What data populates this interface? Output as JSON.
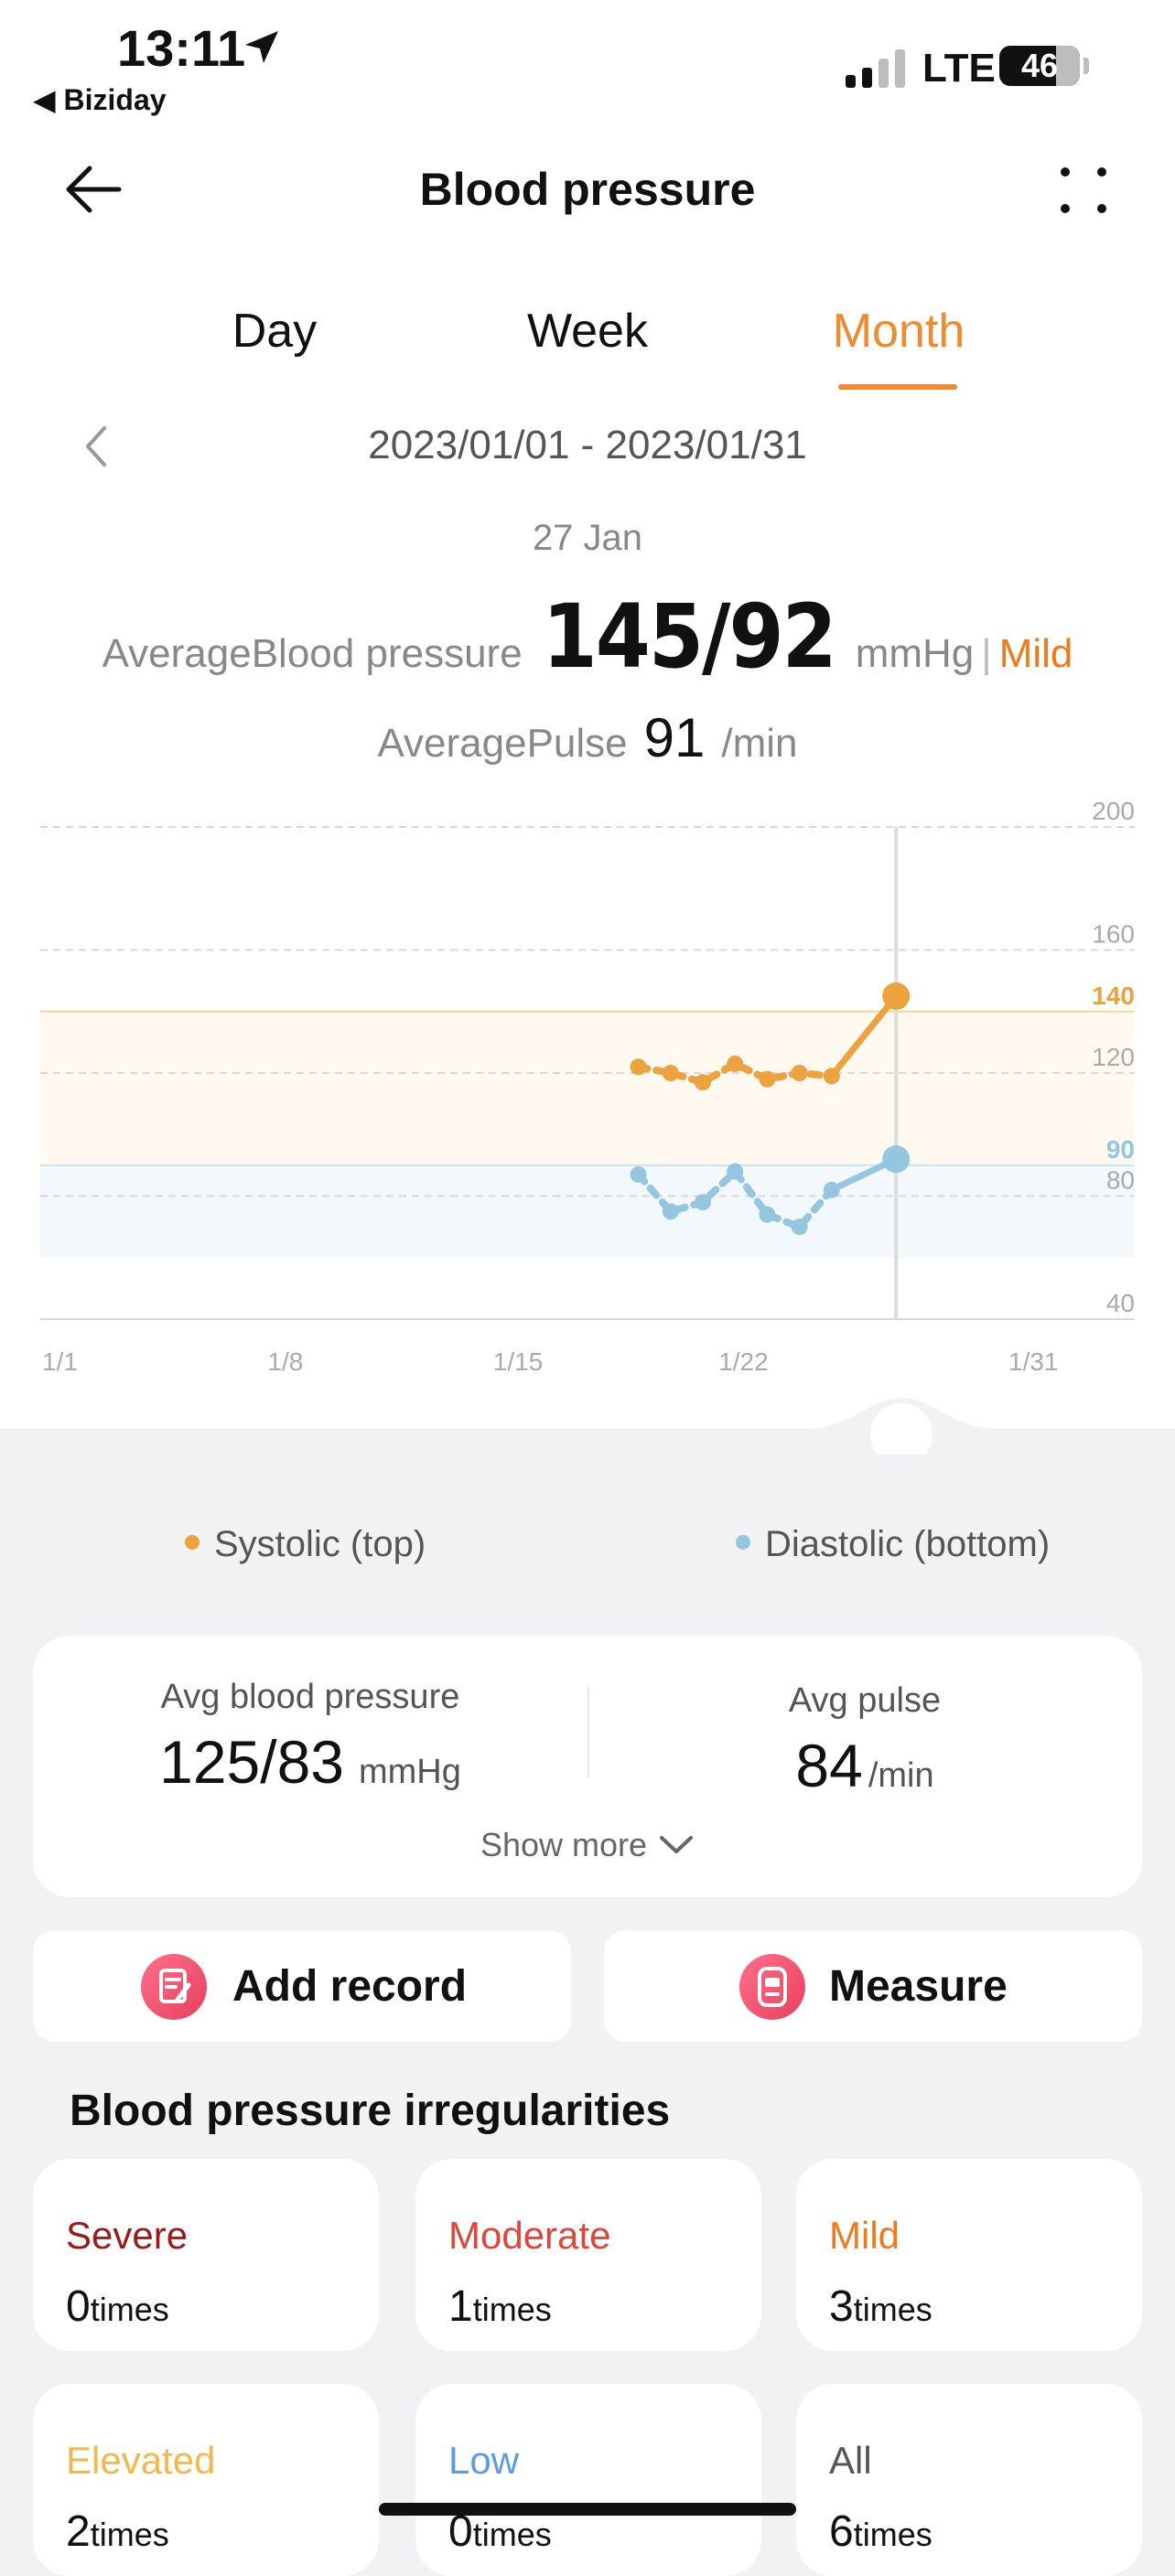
{
  "status_bar": {
    "time": "13:11",
    "back_app": "◀ Biziday",
    "network": "LTE",
    "battery": "46"
  },
  "nav": {
    "title": "Blood pressure"
  },
  "tabs": [
    {
      "label": "Day"
    },
    {
      "label": "Week"
    },
    {
      "label": "Month",
      "active": true
    }
  ],
  "date_range": "2023/01/01 - 2023/01/31",
  "selected": {
    "date": "27 Jan",
    "avg_bp_label": "AverageBlood pressure",
    "avg_bp_value": "145/92",
    "avg_bp_unit": "mmHg",
    "separator": "|",
    "category": "Mild",
    "avg_pulse_label": "AveragePulse",
    "avg_pulse_value": "91",
    "avg_pulse_unit": "/min"
  },
  "colors": {
    "accent": "#ef8a2f",
    "systolic": "#eba23f",
    "diastolic": "#94c6e0",
    "severe": "#9b1b1b",
    "moderate": "#e0453a",
    "mild": "#ee7a1e",
    "elevated": "#f2b94a",
    "low": "#5b9be8",
    "all": "#555555"
  },
  "chart_data": {
    "type": "line",
    "x_ticks": [
      "1/1",
      "1/8",
      "1/15",
      "1/22",
      "1/31"
    ],
    "x_tick_days": [
      1,
      8,
      15,
      22,
      31
    ],
    "y_ticks": [
      200,
      160,
      140,
      120,
      90,
      80,
      40
    ],
    "ylim": [
      40,
      200
    ],
    "xlim": [
      1,
      31
    ],
    "bands": [
      {
        "name": "systolic-normal",
        "from": 90,
        "to": 140
      },
      {
        "name": "diastolic-normal",
        "from": 60,
        "to": 90
      }
    ],
    "selected_day": 27,
    "series": [
      {
        "key": "systolic",
        "x": [
          19,
          20,
          21,
          22,
          23,
          24,
          25,
          27
        ],
        "y": [
          122,
          120,
          117,
          123,
          118,
          120,
          119,
          145
        ]
      },
      {
        "key": "diastolic",
        "x": [
          19,
          20,
          21,
          22,
          23,
          24,
          25,
          27
        ],
        "y": [
          87,
          75,
          78,
          88,
          74,
          70,
          82,
          92
        ]
      }
    ]
  },
  "legend": {
    "systolic": "Systolic (top)",
    "diastolic": "Diastolic (bottom)"
  },
  "summary": {
    "avg_bp_label": "Avg blood pressure",
    "avg_bp_value": "125/83",
    "avg_bp_unit": "mmHg",
    "avg_pulse_label": "Avg pulse",
    "avg_pulse_value": "84",
    "avg_pulse_unit": "/min",
    "show_more": "Show more"
  },
  "actions": {
    "add_record": "Add record",
    "measure": "Measure"
  },
  "irregularities": {
    "title": "Blood pressure irregularities",
    "unit": "times",
    "items": [
      {
        "name": "Severe",
        "count": "0"
      },
      {
        "name": "Moderate",
        "count": "1"
      },
      {
        "name": "Mild",
        "count": "3"
      },
      {
        "name": "Elevated",
        "count": "2"
      },
      {
        "name": "Low",
        "count": "0"
      },
      {
        "name": "All",
        "count": "6"
      }
    ]
  }
}
